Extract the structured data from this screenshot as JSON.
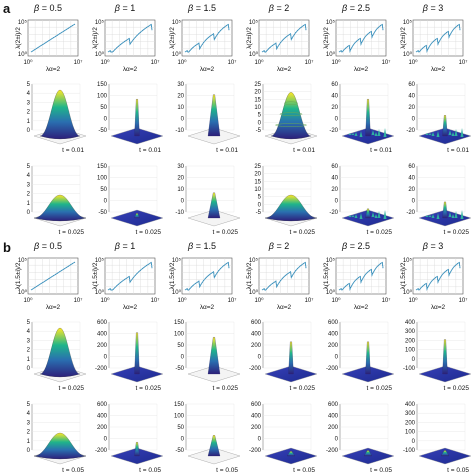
{
  "panel_labels": [
    "a",
    "b"
  ],
  "beta_symbol": "β",
  "panels": [
    {
      "label": "a",
      "betas": [
        "0.5",
        "1",
        "1.5",
        "2",
        "2.5",
        "3"
      ],
      "spectrum_plot": {
        "ylabel": "λ(2±i)/2",
        "xlabel": "λα=2",
        "x_ticks": [
          "10⁰",
          "10⁷"
        ],
        "y_ticks": [
          "10⁰",
          "10⁵"
        ],
        "type": "line"
      },
      "surface_rows": [
        {
          "time_label": "t = 0.01",
          "columns": [
            {
              "beta": "0.5",
              "z_ticks": [
                "0",
                "1",
                "2",
                "3",
                "4",
                "5"
              ],
              "shape": "gaussian",
              "peak_frac": 1.0
            },
            {
              "beta": "1",
              "z_ticks": [
                "-50",
                "0",
                "50",
                "100",
                "150"
              ],
              "shape": "spike",
              "peak_frac": 0.8
            },
            {
              "beta": "1.5",
              "z_ticks": [
                "-10",
                "0",
                "10",
                "20",
                "30"
              ],
              "shape": "peak",
              "peak_frac": 0.9
            },
            {
              "beta": "2",
              "z_ticks": [
                "-5",
                "0",
                "5",
                "10",
                "15",
                "20",
                "25"
              ],
              "shape": "ringed-cone",
              "peak_frac": 0.95
            },
            {
              "beta": "2.5",
              "z_ticks": [
                "-20",
                "0",
                "20",
                "40",
                "60"
              ],
              "shape": "noisy-spike",
              "peak_frac": 0.8
            },
            {
              "beta": "3",
              "z_ticks": [
                "-20",
                "0",
                "20",
                "40",
                "60"
              ],
              "shape": "noisy",
              "peak_frac": 0.45
            }
          ]
        },
        {
          "time_label": "t = 0.025",
          "columns": [
            {
              "beta": "0.5",
              "z_ticks": [
                "0",
                "1",
                "2",
                "3",
                "4",
                "5"
              ],
              "shape": "wide-gaussian",
              "peak_frac": 0.5
            },
            {
              "beta": "1",
              "z_ticks": [
                "-50",
                "0",
                "50",
                "100",
                "150"
              ],
              "shape": "flat",
              "peak_frac": 0.1
            },
            {
              "beta": "1.5",
              "z_ticks": [
                "-10",
                "0",
                "10",
                "20",
                "30"
              ],
              "shape": "peak",
              "peak_frac": 0.55
            },
            {
              "beta": "2",
              "z_ticks": [
                "-5",
                "0",
                "5",
                "10",
                "15",
                "20",
                "25"
              ],
              "shape": "wide-gaussian",
              "peak_frac": 0.5
            },
            {
              "beta": "2.5",
              "z_ticks": [
                "-20",
                "0",
                "20",
                "40",
                "60"
              ],
              "shape": "noisy",
              "peak_frac": 0.2
            },
            {
              "beta": "3",
              "z_ticks": [
                "-20",
                "0",
                "20",
                "40",
                "60"
              ],
              "shape": "noisy",
              "peak_frac": 0.35
            }
          ]
        }
      ]
    },
    {
      "label": "b",
      "betas": [
        "0.5",
        "1",
        "1.5",
        "2",
        "2.5",
        "3"
      ],
      "spectrum_plot": {
        "ylabel": "λ(1.5±i)/2",
        "xlabel": "λα=2",
        "x_ticks": [
          "10⁰",
          "10⁷"
        ],
        "y_ticks": [
          "10⁰",
          "10⁵"
        ],
        "type": "line"
      },
      "surface_rows": [
        {
          "time_label": "t = 0.025",
          "columns": [
            {
              "beta": "0.5",
              "z_ticks": [
                "0",
                "1",
                "2",
                "3",
                "4",
                "5"
              ],
              "shape": "gaussian",
              "peak_frac": 1.0
            },
            {
              "beta": "1",
              "z_ticks": [
                "-200",
                "0",
                "200",
                "400",
                "600"
              ],
              "shape": "spike",
              "peak_frac": 0.9
            },
            {
              "beta": "1.5",
              "z_ticks": [
                "-50",
                "0",
                "50",
                "100",
                "150"
              ],
              "shape": "peak",
              "peak_frac": 0.8
            },
            {
              "beta": "2",
              "z_ticks": [
                "-200",
                "0",
                "200",
                "400",
                "600"
              ],
              "shape": "spike",
              "peak_frac": 0.7
            },
            {
              "beta": "2.5",
              "z_ticks": [
                "-200",
                "0",
                "200",
                "400",
                "600"
              ],
              "shape": "spike",
              "peak_frac": 0.7
            },
            {
              "beta": "3",
              "z_ticks": [
                "-100",
                "0",
                "100",
                "200",
                "300",
                "400"
              ],
              "shape": "spike",
              "peak_frac": 0.75
            }
          ]
        },
        {
          "time_label": "t = 0.05",
          "columns": [
            {
              "beta": "0.5",
              "z_ticks": [
                "0",
                "1",
                "2",
                "3",
                "4",
                "5"
              ],
              "shape": "wide-gaussian",
              "peak_frac": 0.5
            },
            {
              "beta": "1",
              "z_ticks": [
                "-200",
                "0",
                "200",
                "400",
                "600"
              ],
              "shape": "spike",
              "peak_frac": 0.3
            },
            {
              "beta": "1.5",
              "z_ticks": [
                "-50",
                "0",
                "50",
                "100",
                "150"
              ],
              "shape": "peak",
              "peak_frac": 0.45
            },
            {
              "beta": "2",
              "z_ticks": [
                "-200",
                "0",
                "200",
                "400",
                "600"
              ],
              "shape": "small-peak",
              "peak_frac": 0.1
            },
            {
              "beta": "2.5",
              "z_ticks": [
                "-200",
                "0",
                "200",
                "400",
                "600"
              ],
              "shape": "small-peak",
              "peak_frac": 0.12
            },
            {
              "beta": "3",
              "z_ticks": [
                "-100",
                "0",
                "100",
                "200",
                "300",
                "400"
              ],
              "shape": "small-peak",
              "peak_frac": 0.12
            }
          ]
        }
      ]
    }
  ],
  "chart_data": [
    {
      "type": "line",
      "panel": "a",
      "kind": "spectrum",
      "xlabel": "λα=2",
      "ylabel": "λ(2±i)/2",
      "x_scale": "log",
      "y_scale": "log",
      "xlim": [
        1,
        10000000
      ],
      "ylim": [
        1,
        100000
      ],
      "betas": [
        0.5,
        1,
        1.5,
        2,
        2.5,
        3
      ],
      "cusps_per_beta": [
        0,
        1,
        2,
        2,
        3,
        3
      ]
    },
    {
      "type": "line",
      "panel": "b",
      "kind": "spectrum",
      "xlabel": "λα=2",
      "ylabel": "λ(1.5±i)/2",
      "x_scale": "log",
      "y_scale": "log",
      "xlim": [
        1,
        10000000
      ],
      "ylim": [
        1,
        100000
      ],
      "betas": [
        0.5,
        1,
        1.5,
        2,
        2.5,
        3
      ],
      "cusps_per_beta": [
        0,
        1,
        2,
        2,
        3,
        3
      ]
    }
  ],
  "colors": {
    "line": "#2e86b5",
    "surface_low": "#3b1f8c",
    "surface_mid": "#1fa187",
    "surface_high": "#fde725",
    "grid": "#d9d9d9"
  }
}
